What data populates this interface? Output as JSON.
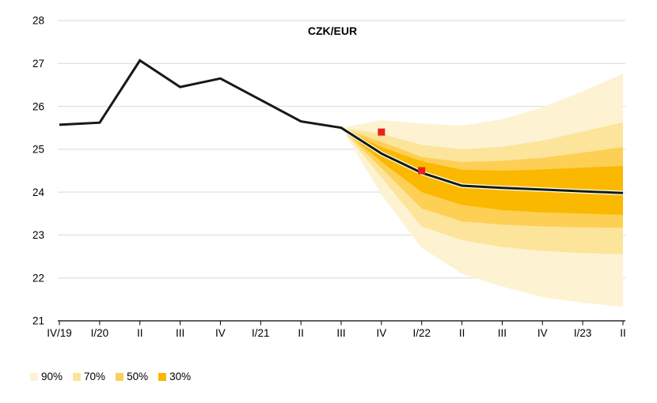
{
  "chart_data": {
    "type": "line",
    "subtype": "fan-chart",
    "title": "CZK/EUR",
    "categories": [
      "IV/19",
      "I/20",
      "II",
      "III",
      "IV",
      "I/21",
      "II",
      "III",
      "IV",
      "I/22",
      "II",
      "III",
      "IV",
      "I/23",
      "II"
    ],
    "line_values": [
      25.57,
      25.62,
      27.07,
      26.45,
      26.65,
      26.15,
      25.65,
      25.5,
      24.9,
      24.45,
      24.15,
      24.1,
      24.06,
      24.02,
      23.98
    ],
    "forecast_start_index": 7,
    "bands": [
      {
        "label": "90%",
        "color": "#FDF3D2",
        "upper": [
          25.5,
          25.68,
          25.6,
          25.55,
          25.7,
          25.98,
          26.35,
          26.76
        ],
        "lower": [
          25.5,
          23.94,
          22.7,
          22.1,
          21.8,
          21.55,
          21.42,
          21.33
        ]
      },
      {
        "label": "70%",
        "color": "#FCE49B",
        "upper": [
          25.5,
          25.36,
          25.1,
          25.0,
          25.06,
          25.2,
          25.41,
          25.63
        ],
        "lower": [
          25.5,
          24.34,
          23.2,
          22.88,
          22.72,
          22.63,
          22.58,
          22.55
        ]
      },
      {
        "label": "50%",
        "color": "#FDCF55",
        "upper": [
          25.5,
          25.17,
          24.82,
          24.7,
          24.73,
          24.8,
          24.92,
          25.05
        ],
        "lower": [
          25.5,
          24.56,
          23.62,
          23.32,
          23.24,
          23.2,
          23.18,
          23.17
        ]
      },
      {
        "label": "30%",
        "color": "#FBB800",
        "upper": [
          25.5,
          25.05,
          24.72,
          24.52,
          24.5,
          24.53,
          24.57,
          24.61
        ],
        "lower": [
          25.5,
          24.71,
          24.0,
          23.7,
          23.58,
          23.53,
          23.5,
          23.47
        ]
      }
    ],
    "markers": [
      {
        "category": "IV",
        "index": 8,
        "value": 25.4
      },
      {
        "category": "I/22",
        "index": 9,
        "value": 24.5
      }
    ],
    "ylim": [
      21,
      28
    ],
    "yticks": [
      21,
      22,
      23,
      24,
      25,
      26,
      27,
      28
    ],
    "grid": true,
    "legend_position": "bottom-left",
    "colors": {
      "line": "#141A14",
      "line_casing": "#FFFFF0",
      "marker": "#E8211B",
      "grid": "#D9D9D9",
      "axis": "#000000",
      "text": "#000000"
    }
  }
}
